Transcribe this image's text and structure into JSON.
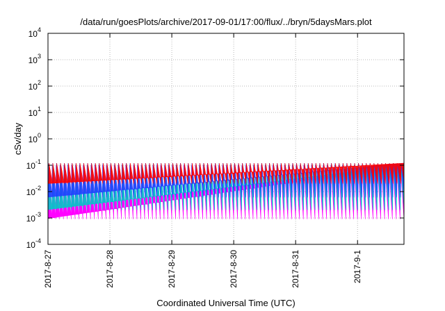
{
  "chart_data": {
    "type": "area",
    "title": "/data/run/goesPlots/archive/2017-09-01/17:00/flux/../bryn/5daysMars.plot",
    "xlabel": "Coordinated Universal Time (UTC)",
    "ylabel": "cSv/day",
    "y_scale": "log",
    "ylim": [
      0.0001,
      10000
    ],
    "xlim": [
      "2017-08-27",
      "2017-09-01T18:00"
    ],
    "grid": true,
    "legend": "none",
    "y_ticks": [
      {
        "base": "10",
        "exp": "-4",
        "value": 0.0001
      },
      {
        "base": "10",
        "exp": "-3",
        "value": 0.001
      },
      {
        "base": "10",
        "exp": "-2",
        "value": 0.01
      },
      {
        "base": "10",
        "exp": "-1",
        "value": 0.1
      },
      {
        "base": "10",
        "exp": "0",
        "value": 1
      },
      {
        "base": "10",
        "exp": "1",
        "value": 10
      },
      {
        "base": "10",
        "exp": "2",
        "value": 100
      },
      {
        "base": "10",
        "exp": "3",
        "value": 1000
      },
      {
        "base": "10",
        "exp": "4",
        "value": 10000
      }
    ],
    "x_ticks": [
      {
        "label": "2017-8-27",
        "date": "2017-08-27"
      },
      {
        "label": "2017-8-28",
        "date": "2017-08-28"
      },
      {
        "label": "2017-8-29",
        "date": "2017-08-29"
      },
      {
        "label": "2017-8-30",
        "date": "2017-08-30"
      },
      {
        "label": "2017-8-31",
        "date": "2017-08-31"
      },
      {
        "label": "2017-9-1",
        "date": "2017-09-01"
      }
    ],
    "series_pattern": {
      "shape": "sawtooth",
      "period_hours": 1.5,
      "bands": [
        {
          "color": "#ff00ff",
          "peak": 0.1,
          "trough": 0.0009
        },
        {
          "color": "#00c8c8",
          "peak": 0.1,
          "trough": 0.002
        },
        {
          "color": "#2040ff",
          "peak": 0.12,
          "trough": 0.006
        },
        {
          "color": "#ff0000",
          "peak": 0.12,
          "trough": 0.02
        }
      ]
    }
  }
}
